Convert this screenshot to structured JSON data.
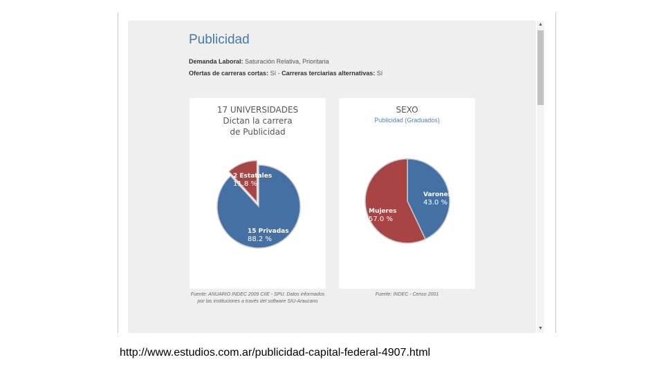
{
  "page": {
    "title": "Publicidad",
    "demanda_label": "Demanda Laboral:",
    "demanda_value": "Saturación Relativa, Prioritaria",
    "ofertas_label": "Ofertas de carreras cortas:",
    "ofertas_value": "Sí",
    "separator": "-",
    "terciarias_label": "Carreras terciarias alternativas:",
    "terciarias_value": "Sí"
  },
  "chart1": {
    "title_line1": "17 UNIVERSIDADES",
    "title_line2": "Dictan la carrera",
    "title_line3": "de Publicidad",
    "source": "Fuente: ANUARIO INDEC 2009 CIIE - SPU. Datos informados por las instituciones a través del software SIU-Araucano"
  },
  "chart2": {
    "title": "SEXO",
    "subtitle": "Publicidad (Graduados)",
    "source": "Fuente: INDEC - Censo 2001"
  },
  "colors": {
    "blue": "#4470a4",
    "red": "#a84444",
    "title_blue": "#3f7aa8"
  },
  "url": "http://www.estudios.com.ar/publicidad-capital-federal-4907.html",
  "chart_data": [
    {
      "type": "pie",
      "title": "17 UNIVERSIDADES Dictan la carrera de Publicidad",
      "slices": [
        {
          "label": "15 Privadas",
          "value": 88.2,
          "display": "88.2 %",
          "color": "#4470a4"
        },
        {
          "label": "2 Estatales",
          "value": 11.8,
          "display": "11.8 %",
          "color": "#a84444"
        }
      ]
    },
    {
      "type": "pie",
      "title": "SEXO",
      "subtitle": "Publicidad (Graduados)",
      "slices": [
        {
          "label": "Varones",
          "value": 43.0,
          "display": "43.0 %",
          "color": "#4470a4"
        },
        {
          "label": "Mujeres",
          "value": 57.0,
          "display": "57.0 %",
          "color": "#a84444"
        }
      ]
    }
  ]
}
